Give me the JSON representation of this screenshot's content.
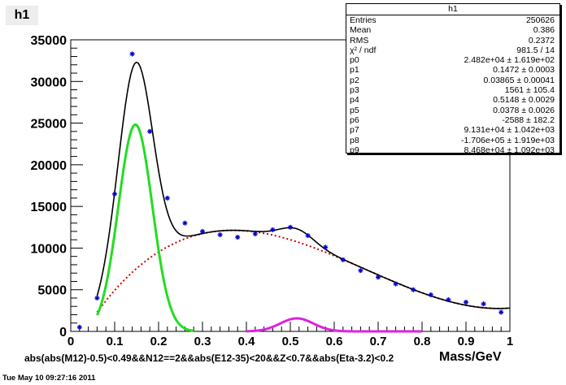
{
  "header": {
    "hist_name": "h1"
  },
  "stats_box": {
    "title": "h1",
    "rows": [
      {
        "key": "Entries",
        "value": "250626"
      },
      {
        "key": "Mean",
        "value": "0.386"
      },
      {
        "key": "RMS",
        "value": "0.2372"
      },
      {
        "key": "χ² / ndf",
        "value": "981.5 / 14"
      },
      {
        "key": "p0",
        "value": "2.482e+04 ± 1.619e+02"
      },
      {
        "key": "p1",
        "value": "0.1472 ± 0.0003"
      },
      {
        "key": "p2",
        "value": "0.03865 ± 0.00041"
      },
      {
        "key": "p3",
        "value": "1561 ± 105.4"
      },
      {
        "key": "p4",
        "value": "0.5148 ± 0.0029"
      },
      {
        "key": "p5",
        "value": "0.0378 ± 0.0026"
      },
      {
        "key": "p6",
        "value": "-2588 ± 182.2"
      },
      {
        "key": "p7",
        "value": "9.131e+04 ± 1.042e+03"
      },
      {
        "key": "p8",
        "value": "-1.706e+05 ± 1.919e+03"
      },
      {
        "key": "p9",
        "value": "8.468e+04 ± 1.092e+03"
      }
    ]
  },
  "footer": {
    "cut_label": "abs(abs(M12)-0.5)<0.49&&N12==2&&abs(E12-35)<20&&Z<0.7&&abs(Eta-3.2)<0.2",
    "timestamp": "Tue May 10 09:27:16 2011"
  },
  "chart_data": {
    "type": "scatter",
    "title": "h1",
    "xlabel": "Mass/GeV",
    "ylabel": "",
    "xlim": [
      0,
      1
    ],
    "ylim": [
      0,
      35000
    ],
    "x_ticks": [
      "0",
      "0.1",
      "0.2",
      "0.3",
      "0.4",
      "0.5",
      "0.6",
      "0.7",
      "0.8",
      "0.9",
      "1"
    ],
    "x_tick_values": [
      0,
      0.1,
      0.2,
      0.3,
      0.4,
      0.5,
      0.6,
      0.7,
      0.8,
      0.9,
      1
    ],
    "y_ticks": [
      "0",
      "5000",
      "10000",
      "15000",
      "20000",
      "25000",
      "30000",
      "35000"
    ],
    "y_tick_values": [
      0,
      5000,
      10000,
      15000,
      20000,
      25000,
      30000,
      35000
    ],
    "grid": false,
    "legend": "top-right stats box",
    "colors": {
      "points": "#0000cc",
      "total": "#000000",
      "signal_1": "#22dd22",
      "signal_2": "#dd22dd",
      "background": "#cc0000"
    },
    "points": {
      "x": [
        0.02,
        0.06,
        0.1,
        0.14,
        0.18,
        0.22,
        0.26,
        0.3,
        0.34,
        0.38,
        0.42,
        0.46,
        0.5,
        0.54,
        0.58,
        0.62,
        0.66,
        0.7,
        0.74,
        0.78,
        0.82,
        0.86,
        0.9,
        0.94,
        0.98
      ],
      "y": [
        500,
        4000,
        16500,
        33300,
        24000,
        16000,
        13000,
        12000,
        11600,
        11300,
        11700,
        12200,
        12500,
        11500,
        10100,
        8600,
        7300,
        6500,
        5700,
        5000,
        4400,
        3800,
        3500,
        3300,
        2300
      ]
    },
    "functions": {
      "signal_1": {
        "shape": "gaus",
        "p0": 24820,
        "p1": 0.1472,
        "p2": 0.03865,
        "range": [
          0.06,
          0.28
        ]
      },
      "signal_2": {
        "shape": "gaus",
        "p3": 1561,
        "p4": 0.5148,
        "p5": 0.0378,
        "range": [
          0.4,
          0.8
        ]
      },
      "background": {
        "shape": "pol3",
        "p6": -2588,
        "p7": 91310,
        "p8": -170600,
        "p9": 84680,
        "range": [
          0.06,
          1.0
        ]
      },
      "total": {
        "shape": "gaus+gaus+pol3",
        "range": [
          0.06,
          1.0
        ]
      }
    }
  }
}
